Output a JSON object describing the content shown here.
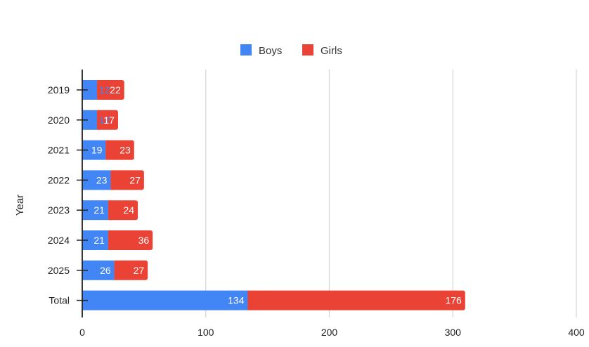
{
  "chart_data": {
    "type": "bar",
    "orientation": "horizontal",
    "stacked": true,
    "title": "",
    "xlabel": "",
    "ylabel": "Year",
    "categories": [
      "2019",
      "2020",
      "2021",
      "2022",
      "2023",
      "2024",
      "2025",
      "Total"
    ],
    "series": [
      {
        "name": "Boys",
        "color": "#4285f4",
        "values": [
          12,
          12,
          19,
          23,
          21,
          21,
          26,
          134
        ]
      },
      {
        "name": "Girls",
        "color": "#ea4335",
        "values": [
          22,
          17,
          23,
          27,
          24,
          36,
          27,
          176
        ]
      }
    ],
    "xlim": [
      0,
      400
    ],
    "xticks": [
      "0",
      "100",
      "200",
      "300",
      "400"
    ],
    "grid": true,
    "legend_position": "top"
  }
}
